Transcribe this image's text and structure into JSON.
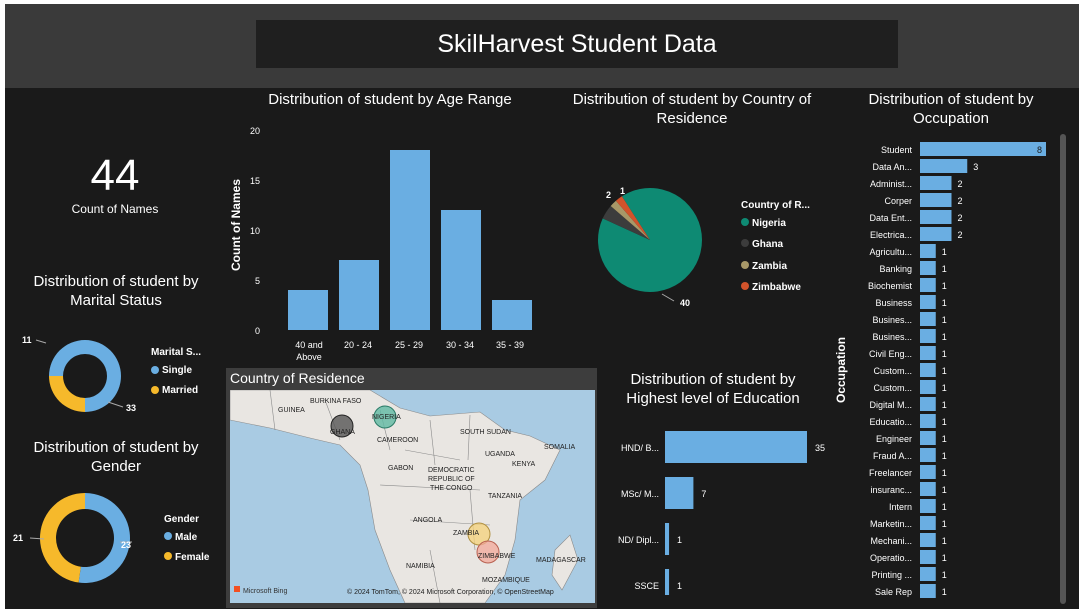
{
  "header": {
    "title": "SkilHarvest Student Data"
  },
  "kpi": {
    "value": "44",
    "label": "Count of Names"
  },
  "marital": {
    "title_line1": "Distribution of student by",
    "title_line2": "Marital Status",
    "legend_title": "Marital S...",
    "items": [
      {
        "label": "Single",
        "value": 33,
        "color": "#6aaee2"
      },
      {
        "label": "Married",
        "value": 11,
        "color": "#f6b92b"
      }
    ],
    "label_single": "33",
    "label_married": "11"
  },
  "gender": {
    "title_line1": "Distribution of student by",
    "title_line2": "Gender",
    "legend_title": "Gender",
    "items": [
      {
        "label": "Male",
        "value": 23,
        "color": "#6aaee2"
      },
      {
        "label": "Female",
        "value": 21,
        "color": "#f6b92b"
      }
    ],
    "label_male": "23",
    "label_female": "21"
  },
  "age": {
    "title": "Distribution of student by Age Range",
    "ylabel": "Count of Names",
    "y_ticks": [
      "0",
      "5",
      "10",
      "15",
      "20"
    ],
    "cat1_line1": "40 and",
    "cat1_line2": "Above",
    "cat2": "20 - 24",
    "cat3": "25 - 29",
    "cat4": "30 - 34",
    "cat5": "35 - 39"
  },
  "country": {
    "title_line1": "Distribution of student by Country of",
    "title_line2": "Residence",
    "legend_title": "Country of R...",
    "items": [
      {
        "label": "Nigeria",
        "value": 40,
        "color": "#0e8a73"
      },
      {
        "label": "Ghana",
        "value": 2,
        "color": "#3c3c3c"
      },
      {
        "label": "Zambia",
        "value": 1,
        "color": "#a89868"
      },
      {
        "label": "Zimbabwe",
        "value": 1,
        "color": "#d2532b"
      }
    ],
    "label_40": "40",
    "label_2": "2",
    "label_1": "1"
  },
  "map": {
    "title": "Country of Residence",
    "labels": {
      "burkina": "BURKINA FASO",
      "guinea": "GUINEA",
      "nigeria": "NIGERIA",
      "ghana": "GHANA",
      "cameroon": "CAMEROON",
      "south_sudan": "SOUTH SUDAN",
      "somalia": "SOMALIA",
      "uganda": "UGANDA",
      "kenya": "KENYA",
      "gabon": "GABON",
      "drc1": "DEMOCRATIC",
      "drc2": "REPUBLIC OF",
      "drc3": "THE CONGO",
      "tanzania": "TANZANIA",
      "angola": "ANGOLA",
      "zambia": "ZAMBIA",
      "zimbabwe": "ZIMBABWE",
      "namibia": "NAMIBIA",
      "madagascar": "MADAGASCAR",
      "mozambique": "MOZAMBIQUE"
    },
    "bing": "Microsoft Bing",
    "copyright": "© 2024 TomTom, © 2024 Microsoft Corporation, © OpenStreetMap"
  },
  "education": {
    "title_line1": "Distribution of student by",
    "title_line2": "Highest level of Education",
    "items": [
      {
        "label": "HND/ B...",
        "value": 35
      },
      {
        "label": "MSc/ M...",
        "value": 7
      },
      {
        "label": "ND/ Dipl...",
        "value": 1
      },
      {
        "label": "SSCE",
        "value": 1
      }
    ],
    "v1": "35",
    "v2": "7",
    "v3": "1",
    "v4": "1"
  },
  "occupation": {
    "title_line1": "Distribution of student by",
    "title_line2": "Occupation",
    "ylabel": "Occupation",
    "items": [
      {
        "label": "Student",
        "value": 8
      },
      {
        "label": "Data An...",
        "value": 3
      },
      {
        "label": "Administ...",
        "value": 2
      },
      {
        "label": "Corper",
        "value": 2
      },
      {
        "label": "Data Ent...",
        "value": 2
      },
      {
        "label": "Electrica...",
        "value": 2
      },
      {
        "label": "Agricultu...",
        "value": 1
      },
      {
        "label": "Banking",
        "value": 1
      },
      {
        "label": "Biochemist",
        "value": 1
      },
      {
        "label": "Business",
        "value": 1
      },
      {
        "label": "Busines...",
        "value": 1
      },
      {
        "label": "Busines...",
        "value": 1
      },
      {
        "label": "Civil Eng...",
        "value": 1
      },
      {
        "label": "Custom...",
        "value": 1
      },
      {
        "label": "Custom...",
        "value": 1
      },
      {
        "label": "Digital M...",
        "value": 1
      },
      {
        "label": "Educatio...",
        "value": 1
      },
      {
        "label": "Engineer",
        "value": 1
      },
      {
        "label": "Fraud A...",
        "value": 1
      },
      {
        "label": "Freelancer",
        "value": 1
      },
      {
        "label": "insuranc...",
        "value": 1
      },
      {
        "label": "Intern",
        "value": 1
      },
      {
        "label": "Marketin...",
        "value": 1
      },
      {
        "label": "Mechani...",
        "value": 1
      },
      {
        "label": "Operatio...",
        "value": 1
      },
      {
        "label": "Printing ...",
        "value": 1
      },
      {
        "label": "Sale Rep",
        "value": 1
      }
    ]
  },
  "chart_data": [
    {
      "type": "bar",
      "title": "Distribution of student by Age Range",
      "ylabel": "Count of Names",
      "categories": [
        "40 and Above",
        "20 - 24",
        "25 - 29",
        "30 - 34",
        "35 - 39"
      ],
      "values": [
        4,
        7,
        18,
        12,
        3
      ],
      "ylim": [
        0,
        20
      ]
    },
    {
      "type": "pie",
      "title": "Distribution of student by Marital Status",
      "categories": [
        "Single",
        "Married"
      ],
      "values": [
        33,
        11
      ]
    },
    {
      "type": "pie",
      "title": "Distribution of student by Gender",
      "categories": [
        "Male",
        "Female"
      ],
      "values": [
        23,
        21
      ]
    },
    {
      "type": "pie",
      "title": "Distribution of student by Country of Residence",
      "categories": [
        "Nigeria",
        "Ghana",
        "Zambia",
        "Zimbabwe"
      ],
      "values": [
        40,
        2,
        1,
        1
      ]
    },
    {
      "type": "bar",
      "title": "Distribution of student by Highest level of Education",
      "categories": [
        "HND/ B...",
        "MSc/ M...",
        "ND/ Dipl...",
        "SSCE"
      ],
      "values": [
        35,
        7,
        1,
        1
      ]
    },
    {
      "type": "bar",
      "title": "Distribution of student by Occupation",
      "ylabel": "Occupation",
      "categories": [
        "Student",
        "Data An...",
        "Administ...",
        "Corper",
        "Data Ent...",
        "Electrica...",
        "Agricultu...",
        "Banking",
        "Biochemist",
        "Business",
        "Busines...",
        "Busines...",
        "Civil Eng...",
        "Custom...",
        "Custom...",
        "Digital M...",
        "Educatio...",
        "Engineer",
        "Fraud A...",
        "Freelancer",
        "insuranc...",
        "Intern",
        "Marketin...",
        "Mechani...",
        "Operatio...",
        "Printing ...",
        "Sale Rep"
      ],
      "values": [
        8,
        3,
        2,
        2,
        2,
        2,
        1,
        1,
        1,
        1,
        1,
        1,
        1,
        1,
        1,
        1,
        1,
        1,
        1,
        1,
        1,
        1,
        1,
        1,
        1,
        1,
        1
      ]
    }
  ]
}
